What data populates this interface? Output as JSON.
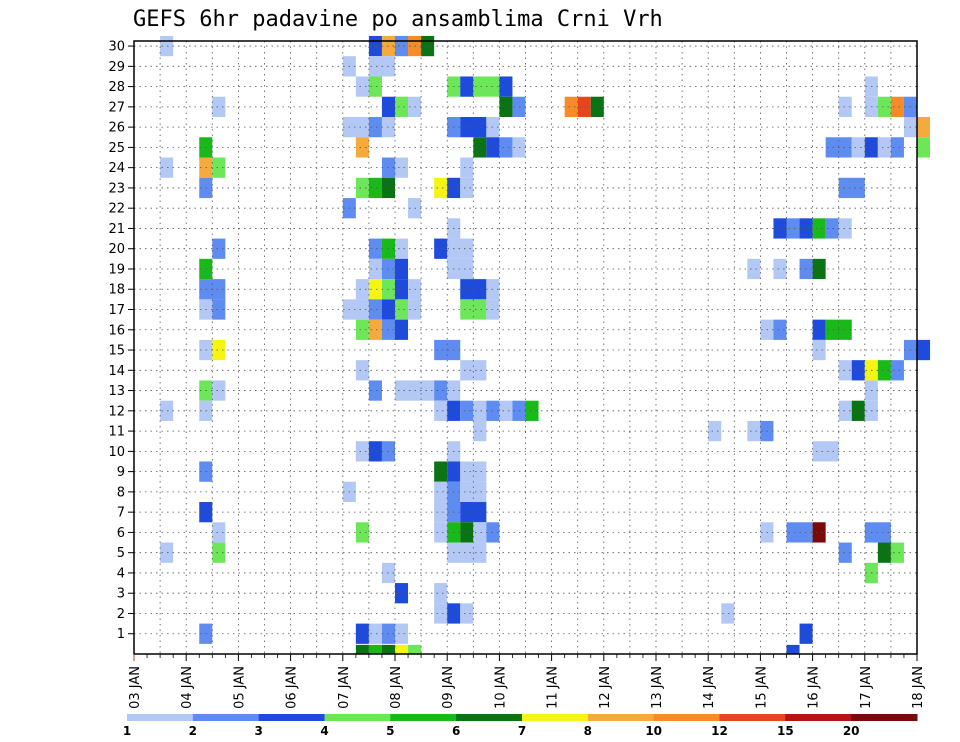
{
  "chart_data": {
    "type": "heatmap",
    "title": "GEFS 6hr padavine po ansamblima Crni Vrh",
    "x_tick_labels": [
      "03 JAN",
      "04 JAN",
      "05 JAN",
      "06 JAN",
      "07 JAN",
      "08 JAN",
      "09 JAN",
      "10 JAN",
      "11 JAN",
      "12 JAN",
      "13 JAN",
      "14 JAN",
      "15 JAN",
      "16 JAN",
      "17 JAN",
      "18 JAN"
    ],
    "x_range_days": [
      3,
      18
    ],
    "y_tick_labels": [
      "1",
      "2",
      "3",
      "4",
      "5",
      "6",
      "7",
      "8",
      "9",
      "10",
      "11",
      "12",
      "13",
      "14",
      "15",
      "16",
      "17",
      "18",
      "19",
      "20",
      "21",
      "22",
      "23",
      "24",
      "25",
      "26",
      "27",
      "28",
      "29",
      "30"
    ],
    "y_range": [
      0,
      30
    ],
    "grid": true,
    "legend_placement": "bottom",
    "legend": {
      "labels": [
        "1",
        "2",
        "3",
        "4",
        "5",
        "6",
        "7",
        "8",
        "10",
        "12",
        "15",
        "20"
      ],
      "colors": [
        "#b4c8f5",
        "#5f8cf0",
        "#1e4bdc",
        "#6ee65a",
        "#19b919",
        "#0a7314",
        "#f5f514",
        "#f5aa3c",
        "#f58c28",
        "#e6461e",
        "#b41414",
        "#780a0a"
      ]
    },
    "color_levels": {
      "1": "#b4c8f5",
      "2": "#5f8cf0",
      "3": "#1e4bdc",
      "4": "#6ee65a",
      "5": "#19b919",
      "6": "#0a7314",
      "7": "#f5f514",
      "8": "#f5aa3c",
      "10": "#f58c28",
      "12": "#e6461e",
      "15": "#b41414",
      "20": "#780a0a"
    },
    "cells_note": "each row: [member, start_day, count_of_6h_steps, level]",
    "cells": [
      [
        30,
        3.5,
        1,
        1
      ],
      [
        30,
        7.5,
        1,
        3
      ],
      [
        30,
        7.75,
        1,
        8
      ],
      [
        30,
        8.0,
        1,
        2
      ],
      [
        30,
        8.25,
        1,
        10
      ],
      [
        30,
        8.5,
        1,
        6
      ],
      [
        29,
        7.0,
        1,
        1
      ],
      [
        29,
        7.5,
        2,
        1
      ],
      [
        28,
        7.25,
        1,
        1
      ],
      [
        28,
        7.5,
        1,
        4
      ],
      [
        28,
        9.0,
        1,
        4
      ],
      [
        28,
        9.25,
        1,
        3
      ],
      [
        28,
        9.5,
        2,
        4
      ],
      [
        28,
        10.0,
        1,
        3
      ],
      [
        28,
        17.0,
        1,
        1
      ],
      [
        27,
        4.5,
        1,
        1
      ],
      [
        27,
        7.75,
        1,
        3
      ],
      [
        27,
        8.0,
        1,
        4
      ],
      [
        27,
        8.25,
        1,
        1
      ],
      [
        27,
        10.0,
        1,
        6
      ],
      [
        27,
        10.25,
        1,
        2
      ],
      [
        27,
        11.25,
        1,
        10
      ],
      [
        27,
        11.5,
        1,
        12
      ],
      [
        27,
        11.75,
        1,
        6
      ],
      [
        27,
        16.5,
        1,
        1
      ],
      [
        27,
        17.0,
        1,
        1
      ],
      [
        27,
        17.25,
        1,
        4
      ],
      [
        27,
        17.5,
        1,
        10
      ],
      [
        27,
        17.75,
        1,
        2
      ],
      [
        26,
        7.0,
        2,
        1
      ],
      [
        26,
        7.5,
        1,
        2
      ],
      [
        26,
        7.75,
        1,
        1
      ],
      [
        26,
        9.0,
        1,
        2
      ],
      [
        26,
        9.25,
        2,
        3
      ],
      [
        26,
        9.75,
        1,
        1
      ],
      [
        26,
        17.75,
        1,
        1
      ],
      [
        26,
        18.0,
        1,
        8
      ],
      [
        25,
        4.25,
        1,
        5
      ],
      [
        25,
        7.25,
        1,
        8
      ],
      [
        25,
        9.5,
        1,
        6
      ],
      [
        25,
        9.75,
        1,
        3
      ],
      [
        25,
        10.0,
        1,
        2
      ],
      [
        25,
        10.25,
        1,
        1
      ],
      [
        25,
        16.25,
        2,
        2
      ],
      [
        25,
        16.75,
        1,
        1
      ],
      [
        25,
        17.0,
        1,
        3
      ],
      [
        25,
        17.25,
        1,
        1
      ],
      [
        25,
        17.5,
        1,
        2
      ],
      [
        25,
        18.0,
        1,
        4
      ],
      [
        24,
        3.5,
        1,
        1
      ],
      [
        24,
        4.25,
        1,
        8
      ],
      [
        24,
        4.5,
        1,
        4
      ],
      [
        24,
        7.75,
        1,
        2
      ],
      [
        24,
        8.0,
        1,
        1
      ],
      [
        24,
        9.25,
        1,
        1
      ],
      [
        23,
        4.25,
        1,
        2
      ],
      [
        23,
        7.25,
        1,
        4
      ],
      [
        23,
        7.5,
        1,
        5
      ],
      [
        23,
        7.75,
        1,
        6
      ],
      [
        23,
        8.75,
        1,
        7
      ],
      [
        23,
        9.0,
        1,
        3
      ],
      [
        23,
        9.25,
        1,
        1
      ],
      [
        23,
        16.5,
        2,
        2
      ],
      [
        22,
        7.0,
        1,
        2
      ],
      [
        22,
        8.25,
        1,
        1
      ],
      [
        21,
        9.0,
        1,
        1
      ],
      [
        21,
        15.25,
        1,
        3
      ],
      [
        21,
        15.5,
        1,
        2
      ],
      [
        21,
        15.75,
        1,
        3
      ],
      [
        21,
        16.0,
        1,
        5
      ],
      [
        21,
        16.25,
        1,
        2
      ],
      [
        21,
        16.5,
        1,
        1
      ],
      [
        20,
        4.5,
        1,
        2
      ],
      [
        20,
        7.5,
        1,
        2
      ],
      [
        20,
        7.75,
        1,
        5
      ],
      [
        20,
        8.0,
        1,
        1
      ],
      [
        20,
        8.75,
        1,
        3
      ],
      [
        20,
        9.0,
        2,
        1
      ],
      [
        19,
        4.25,
        1,
        5
      ],
      [
        19,
        7.5,
        1,
        1
      ],
      [
        19,
        7.75,
        1,
        2
      ],
      [
        19,
        8.0,
        1,
        3
      ],
      [
        19,
        9.0,
        2,
        1
      ],
      [
        19,
        14.75,
        1,
        1
      ],
      [
        19,
        15.25,
        1,
        1
      ],
      [
        19,
        15.75,
        1,
        2
      ],
      [
        19,
        16.0,
        1,
        6
      ],
      [
        18,
        4.25,
        2,
        2
      ],
      [
        18,
        7.25,
        1,
        1
      ],
      [
        18,
        7.5,
        1,
        7
      ],
      [
        18,
        7.75,
        1,
        4
      ],
      [
        18,
        8.0,
        1,
        3
      ],
      [
        18,
        8.25,
        1,
        1
      ],
      [
        18,
        9.25,
        2,
        3
      ],
      [
        18,
        9.75,
        1,
        1
      ],
      [
        17,
        4.25,
        1,
        1
      ],
      [
        17,
        4.5,
        1,
        2
      ],
      [
        17,
        7.0,
        2,
        1
      ],
      [
        17,
        7.5,
        1,
        2
      ],
      [
        17,
        7.75,
        1,
        3
      ],
      [
        17,
        8.0,
        1,
        4
      ],
      [
        17,
        8.25,
        1,
        1
      ],
      [
        17,
        9.25,
        2,
        4
      ],
      [
        17,
        9.75,
        1,
        1
      ],
      [
        16,
        7.25,
        1,
        4
      ],
      [
        16,
        7.5,
        1,
        8
      ],
      [
        16,
        7.75,
        1,
        2
      ],
      [
        16,
        8.0,
        1,
        3
      ],
      [
        16,
        15.0,
        1,
        1
      ],
      [
        16,
        15.25,
        1,
        2
      ],
      [
        16,
        16.0,
        1,
        3
      ],
      [
        16,
        16.25,
        2,
        5
      ],
      [
        15,
        4.25,
        1,
        1
      ],
      [
        15,
        4.5,
        1,
        7
      ],
      [
        15,
        8.75,
        2,
        2
      ],
      [
        15,
        16.0,
        1,
        1
      ],
      [
        15,
        17.75,
        1,
        2
      ],
      [
        15,
        18.0,
        1,
        3
      ],
      [
        14,
        7.25,
        1,
        1
      ],
      [
        14,
        9.25,
        2,
        1
      ],
      [
        14,
        16.5,
        1,
        1
      ],
      [
        14,
        16.75,
        1,
        3
      ],
      [
        14,
        17.0,
        1,
        7
      ],
      [
        14,
        17.25,
        1,
        5
      ],
      [
        14,
        17.5,
        1,
        2
      ],
      [
        13,
        4.25,
        1,
        4
      ],
      [
        13,
        4.5,
        1,
        1
      ],
      [
        13,
        7.5,
        1,
        2
      ],
      [
        13,
        8.0,
        2,
        1
      ],
      [
        13,
        8.5,
        1,
        1
      ],
      [
        13,
        8.75,
        1,
        2
      ],
      [
        13,
        9.0,
        1,
        1
      ],
      [
        13,
        17.0,
        1,
        1
      ],
      [
        12,
        3.5,
        1,
        1
      ],
      [
        12,
        4.25,
        1,
        1
      ],
      [
        12,
        8.75,
        1,
        1
      ],
      [
        12,
        9.0,
        1,
        3
      ],
      [
        12,
        9.25,
        1,
        2
      ],
      [
        12,
        9.5,
        1,
        1
      ],
      [
        12,
        9.75,
        1,
        2
      ],
      [
        12,
        10.0,
        1,
        1
      ],
      [
        12,
        10.25,
        1,
        2
      ],
      [
        12,
        10.5,
        1,
        5
      ],
      [
        12,
        16.5,
        1,
        1
      ],
      [
        12,
        16.75,
        1,
        6
      ],
      [
        12,
        17.0,
        1,
        1
      ],
      [
        11,
        9.5,
        1,
        1
      ],
      [
        11,
        14.0,
        1,
        1
      ],
      [
        11,
        14.75,
        1,
        1
      ],
      [
        11,
        15.0,
        1,
        2
      ],
      [
        10,
        7.25,
        1,
        1
      ],
      [
        10,
        7.5,
        1,
        3
      ],
      [
        10,
        7.75,
        1,
        2
      ],
      [
        10,
        9.0,
        1,
        1
      ],
      [
        10,
        16.0,
        2,
        1
      ],
      [
        9,
        4.25,
        1,
        2
      ],
      [
        9,
        8.75,
        1,
        6
      ],
      [
        9,
        9.0,
        1,
        3
      ],
      [
        9,
        9.25,
        2,
        1
      ],
      [
        8,
        7.0,
        1,
        1
      ],
      [
        8,
        8.75,
        1,
        1
      ],
      [
        8,
        9.0,
        1,
        2
      ],
      [
        8,
        9.25,
        2,
        1
      ],
      [
        7,
        4.25,
        1,
        3
      ],
      [
        7,
        8.75,
        1,
        1
      ],
      [
        7,
        9.0,
        1,
        2
      ],
      [
        7,
        9.25,
        2,
        3
      ],
      [
        6,
        4.5,
        1,
        1
      ],
      [
        6,
        7.25,
        1,
        4
      ],
      [
        6,
        8.75,
        1,
        1
      ],
      [
        6,
        9.0,
        1,
        5
      ],
      [
        6,
        9.25,
        1,
        6
      ],
      [
        6,
        9.5,
        1,
        1
      ],
      [
        6,
        9.75,
        1,
        2
      ],
      [
        6,
        15.0,
        1,
        1
      ],
      [
        6,
        15.5,
        2,
        2
      ],
      [
        6,
        16.0,
        1,
        20
      ],
      [
        6,
        17.0,
        2,
        2
      ],
      [
        5,
        3.5,
        1,
        1
      ],
      [
        5,
        4.5,
        1,
        4
      ],
      [
        5,
        9.0,
        3,
        1
      ],
      [
        5,
        16.5,
        1,
        2
      ],
      [
        5,
        17.25,
        1,
        6
      ],
      [
        5,
        17.5,
        1,
        4
      ],
      [
        4,
        7.75,
        1,
        1
      ],
      [
        4,
        17.0,
        1,
        4
      ],
      [
        3,
        8.0,
        1,
        3
      ],
      [
        3,
        8.75,
        1,
        1
      ],
      [
        2,
        8.75,
        1,
        1
      ],
      [
        2,
        9.0,
        1,
        3
      ],
      [
        2,
        9.25,
        1,
        1
      ],
      [
        2,
        14.25,
        1,
        1
      ],
      [
        1,
        4.25,
        1,
        2
      ],
      [
        1,
        7.25,
        1,
        3
      ],
      [
        1,
        7.5,
        1,
        1
      ],
      [
        1,
        7.75,
        1,
        2
      ],
      [
        1,
        8.0,
        1,
        1
      ],
      [
        1,
        15.75,
        1,
        3
      ],
      [
        0,
        7.25,
        1,
        6
      ],
      [
        0,
        7.5,
        1,
        5
      ],
      [
        0,
        7.75,
        1,
        6
      ],
      [
        0,
        8.0,
        1,
        7
      ],
      [
        0,
        8.25,
        1,
        4
      ],
      [
        0,
        15.5,
        1,
        3
      ]
    ]
  }
}
